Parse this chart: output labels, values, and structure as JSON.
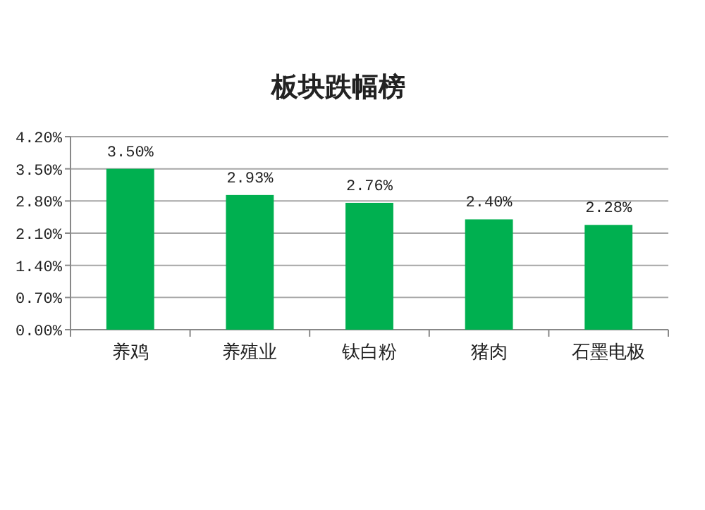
{
  "chart_data": {
    "type": "bar",
    "title": "板块跌幅榜",
    "categories": [
      "养鸡",
      "养殖业",
      "钛白粉",
      "猪肉",
      "石墨电极"
    ],
    "values": [
      3.5,
      2.93,
      2.76,
      2.4,
      2.28
    ],
    "value_labels": [
      "3.50%",
      "2.93%",
      "2.76%",
      "2.40%",
      "2.28%"
    ],
    "color": "#00b050",
    "ylim": [
      0,
      4.2
    ],
    "yticks": [
      {
        "value": 0,
        "label": "0.00%"
      },
      {
        "value": 0.7,
        "label": "0.70%"
      },
      {
        "value": 1.4,
        "label": "1.40%"
      },
      {
        "value": 2.1,
        "label": "2.10%"
      },
      {
        "value": 2.8,
        "label": "2.80%"
      },
      {
        "value": 3.5,
        "label": "3.50%"
      },
      {
        "value": 4.2,
        "label": "4.20%"
      }
    ],
    "grid": "y"
  }
}
